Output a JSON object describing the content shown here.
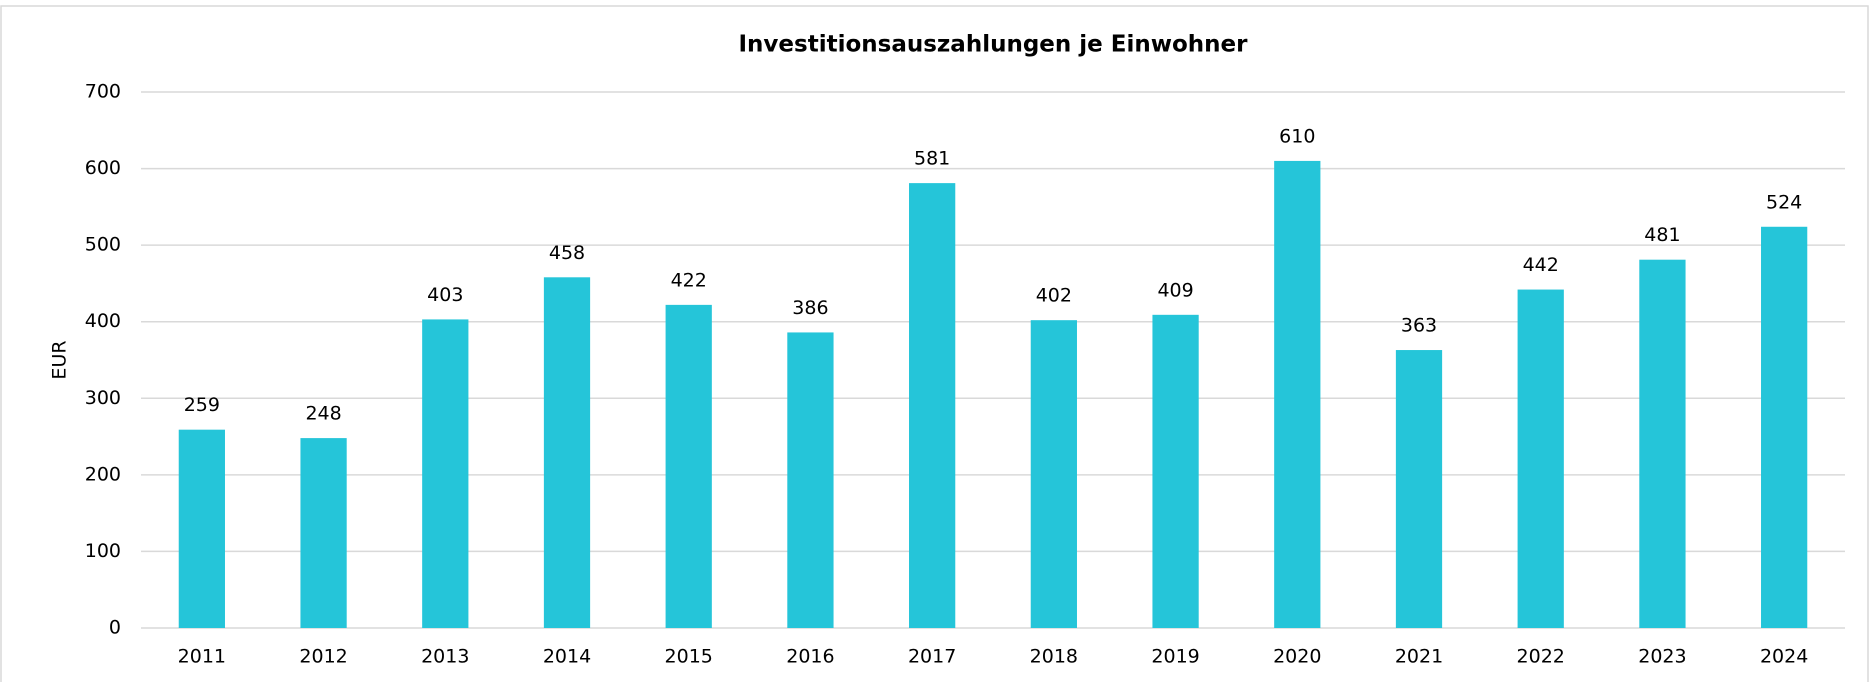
{
  "chart_data": {
    "type": "bar",
    "title": "Investitionsauszahlungen je Einwohner",
    "y_label": "EUR",
    "categories": [
      "2011",
      "2012",
      "2013",
      "2014",
      "2015",
      "2016",
      "2017",
      "2018",
      "2019",
      "2020",
      "2021",
      "2022",
      "2023",
      "2024"
    ],
    "values": [
      259,
      248,
      403,
      458,
      422,
      386,
      581,
      402,
      409,
      610,
      363,
      442,
      481,
      524
    ],
    "color": "#25c5d9",
    "ylim": [
      0,
      700
    ],
    "yticks": [
      0,
      100,
      200,
      300,
      400,
      500,
      600,
      700
    ],
    "grid": true
  }
}
